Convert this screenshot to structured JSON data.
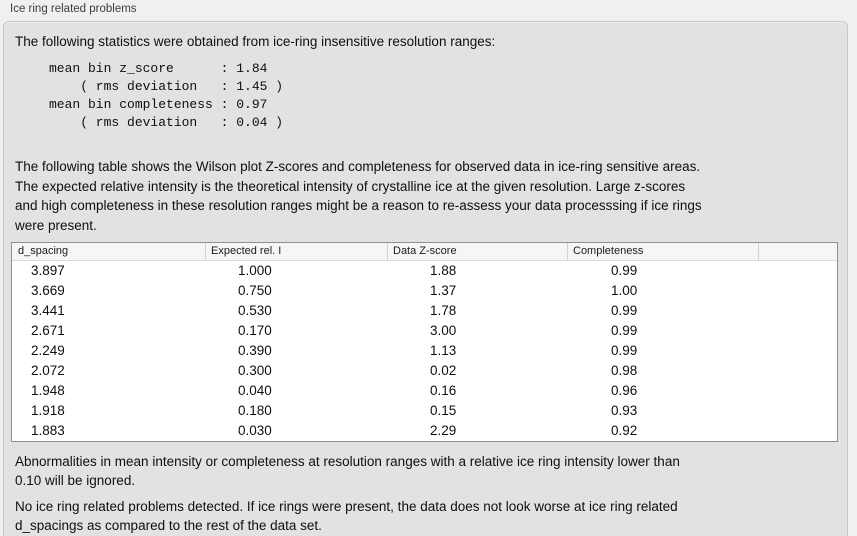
{
  "window": {
    "title": "Ice ring related problems"
  },
  "intro": "The following statistics were obtained from ice-ring insensitive resolution ranges:",
  "stats_block": [
    "mean bin z_score      : 1.84",
    "    ( rms deviation   : 1.45 )",
    "mean bin completeness : 0.97",
    "    ( rms deviation   : 0.04 )"
  ],
  "description": [
    "The following table shows the Wilson plot Z-scores and completeness for observed data in ice-ring sensitive areas.",
    "The expected relative intensity is the theoretical intensity of crystalline ice at the given resolution. Large z-scores",
    "and high completeness in these resolution ranges might be a reason to re-assess your data processsing if ice rings",
    "were present."
  ],
  "table": {
    "columns": [
      "d_spacing",
      "Expected rel. I",
      "Data Z-score",
      "Completeness"
    ],
    "rows": [
      [
        "3.897",
        "1.000",
        "1.88",
        "0.99"
      ],
      [
        "3.669",
        "0.750",
        "1.37",
        "1.00"
      ],
      [
        "3.441",
        "0.530",
        "1.78",
        "0.99"
      ],
      [
        "2.671",
        "0.170",
        "3.00",
        "0.99"
      ],
      [
        "2.249",
        "0.390",
        "1.13",
        "0.99"
      ],
      [
        "2.072",
        "0.300",
        "0.02",
        "0.98"
      ],
      [
        "1.948",
        "0.040",
        "0.16",
        "0.96"
      ],
      [
        "1.918",
        "0.180",
        "0.15",
        "0.93"
      ],
      [
        "1.883",
        "0.030",
        "2.29",
        "0.92"
      ]
    ]
  },
  "note_ignore": [
    "Abnormalities in mean intensity or completeness at resolution ranges with a relative ice ring intensity lower than",
    "0.10 will be ignored."
  ],
  "conclusion": [
    "No ice ring related problems detected. If ice rings were present, the data does not look worse at ice ring related",
    "d_spacings as compared to the rest of the data set."
  ],
  "colors": {
    "outer_background": "#f0f0f0",
    "panel_background": "#e2e2e2",
    "panel_border": "#c5c5c5",
    "table_border": "#8f8f8f",
    "header_background": "#f6f6f6"
  }
}
